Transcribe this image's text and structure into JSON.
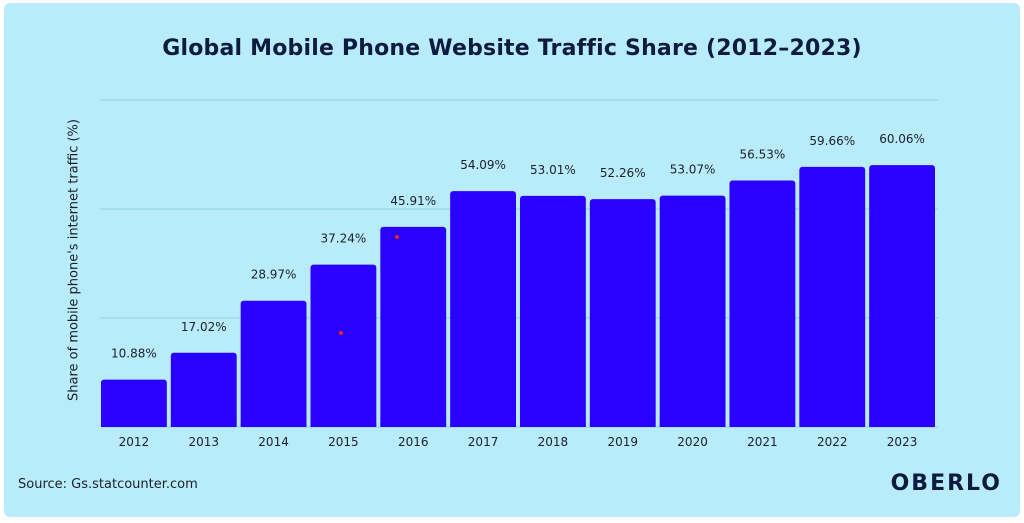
{
  "title": "Global Mobile Phone Website Traffic Share (2012–2023)",
  "source": "Source: Gs.statcounter.com",
  "logo": "OBERLO",
  "colors": {
    "background": "#b9ecfb",
    "bar": "#2a00ff",
    "gridline": "#8fcfe3",
    "text": "#0d1b3e"
  },
  "chart_data": {
    "type": "bar",
    "title": "Global Mobile Phone Website Traffic Share (2012–2023)",
    "xlabel": "",
    "ylabel": "Share of mobile phone's internet traffic (%)",
    "categories": [
      "2012",
      "2013",
      "2014",
      "2015",
      "2016",
      "2017",
      "2018",
      "2019",
      "2020",
      "2021",
      "2022",
      "2023"
    ],
    "values": [
      10.88,
      17.02,
      28.97,
      37.24,
      45.91,
      54.09,
      53.01,
      52.26,
      53.07,
      56.53,
      59.66,
      60.06
    ],
    "data_labels": [
      "10.88%",
      "17.02%",
      "28.97%",
      "37.24%",
      "45.91%",
      "54.09%",
      "53.01%",
      "52.26%",
      "53.07%",
      "56.53%",
      "59.66%",
      "60.06%"
    ],
    "ylim": [
      0,
      75
    ],
    "grid": true,
    "legend": "none"
  }
}
